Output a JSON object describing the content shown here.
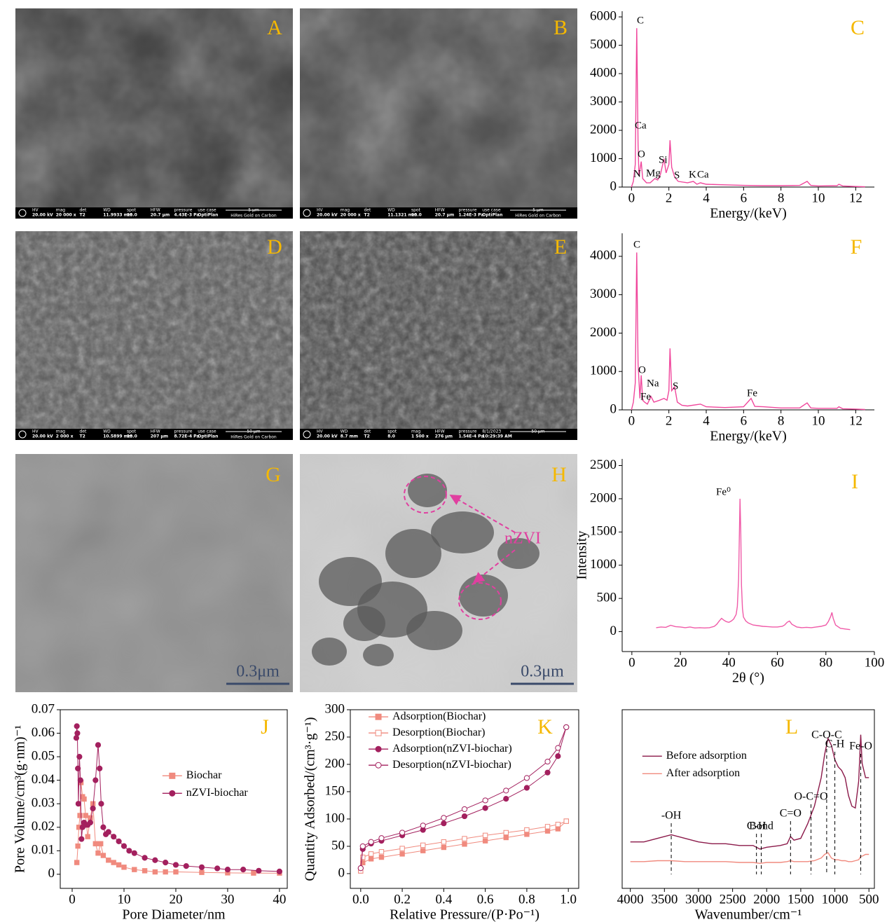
{
  "images": [
    {
      "label": "A",
      "infobar": {
        "fields": [
          {
            "label": "HV",
            "value": "20.00 kV"
          },
          {
            "label": "mag",
            "value": "20 000 x"
          },
          {
            "label": "det",
            "value": "T2"
          },
          {
            "label": "WD",
            "value": "11.9933 mm"
          },
          {
            "label": "spot",
            "value": "10.0"
          },
          {
            "label": "HFW",
            "value": "20.7 μm"
          },
          {
            "label": "pressure",
            "value": "4.43E-3 Pa"
          },
          {
            "label": "use case",
            "value": "OptiPlan"
          }
        ],
        "scale": "5 μm",
        "note": "HiRes Gold on Carbon"
      }
    },
    {
      "label": "B",
      "infobar": {
        "fields": [
          {
            "label": "HV",
            "value": "20.00 kV"
          },
          {
            "label": "mag",
            "value": "20 000 x"
          },
          {
            "label": "det",
            "value": "T2"
          },
          {
            "label": "WD",
            "value": "11.1321 mm"
          },
          {
            "label": "spot",
            "value": "10.0"
          },
          {
            "label": "HFW",
            "value": "20.7 μm"
          },
          {
            "label": "pressure",
            "value": "1.24E-3 Pa"
          },
          {
            "label": "use case",
            "value": "OptiPlan"
          }
        ],
        "scale": "5 μm",
        "note": "HiRes Gold on Carbon"
      }
    },
    {
      "label": "D",
      "infobar": {
        "fields": [
          {
            "label": "HV",
            "value": "20.00 kV"
          },
          {
            "label": "mag",
            "value": "2 000 x"
          },
          {
            "label": "det",
            "value": "T2"
          },
          {
            "label": "WD",
            "value": "10.5899 mm"
          },
          {
            "label": "spot",
            "value": "10.0"
          },
          {
            "label": "HFW",
            "value": "207 μm"
          },
          {
            "label": "pressure",
            "value": "8.72E-4 Pa"
          },
          {
            "label": "use case",
            "value": "OptiPlan"
          }
        ],
        "scale": "50 μm",
        "note": "HiRes Gold on Carbon"
      }
    },
    {
      "label": "E",
      "infobar": {
        "fields": [
          {
            "label": "HV",
            "value": "20.00 kV"
          },
          {
            "label": "WD",
            "value": "8.7 mm"
          },
          {
            "label": "det",
            "value": "T2"
          },
          {
            "label": "spot",
            "value": "8.0"
          },
          {
            "label": "mag",
            "value": "1 500 x"
          },
          {
            "label": "HFW",
            "value": "276 μm"
          },
          {
            "label": "pressure",
            "value": "1.54E-4 Pa"
          },
          {
            "label": "8/1/2023",
            "value": "10:29:39 AM"
          }
        ],
        "scale": "50 μm"
      }
    },
    {
      "label": "G",
      "scale": "0.3μm"
    },
    {
      "label": "H",
      "scale": "0.3μm",
      "annotation": "nZVI"
    }
  ],
  "chart_data": [
    {
      "type": "line",
      "panel": "C",
      "xlabel": "Energy/(keV)",
      "xlim": [
        -0.5,
        13
      ],
      "ylim": [
        0,
        6200
      ],
      "xticks": [
        0,
        2,
        4,
        6,
        8,
        10,
        12
      ],
      "yticks": [
        0,
        1000,
        2000,
        3000,
        4000,
        5000,
        6000
      ],
      "frame": false,
      "x": [
        0,
        0.1,
        0.2,
        0.28,
        0.35,
        0.4,
        0.52,
        0.6,
        0.8,
        1.0,
        1.25,
        1.4,
        1.55,
        1.74,
        1.85,
        2.0,
        2.06,
        2.15,
        2.31,
        2.5,
        3.0,
        3.31,
        3.5,
        3.69,
        4,
        5,
        6,
        7,
        8,
        9,
        9.4,
        9.6,
        10,
        11,
        11.1,
        11.3,
        12,
        12.5
      ],
      "series": [
        {
          "color": "#f0479c",
          "values": [
            0,
            200,
            800,
            5600,
            1500,
            400,
            900,
            300,
            150,
            150,
            300,
            250,
            450,
            1000,
            500,
            800,
            1650,
            700,
            350,
            200,
            150,
            200,
            100,
            150,
            100,
            80,
            60,
            50,
            50,
            60,
            200,
            60,
            40,
            50,
            100,
            40,
            20,
            10
          ]
        }
      ],
      "annotations": [
        "C",
        "Ca",
        "O",
        "N",
        "Mg",
        "Si",
        "S",
        "K",
        "Ca"
      ]
    },
    {
      "type": "line",
      "panel": "F",
      "xlabel": "Energy/(keV)",
      "xlim": [
        -0.5,
        13
      ],
      "ylim": [
        0,
        4600
      ],
      "xticks": [
        0,
        2,
        4,
        6,
        8,
        10,
        12
      ],
      "yticks": [
        0,
        1000,
        2000,
        3000,
        4000
      ],
      "frame": false,
      "x": [
        0,
        0.1,
        0.2,
        0.28,
        0.35,
        0.45,
        0.52,
        0.6,
        0.7,
        0.85,
        1.04,
        1.2,
        1.5,
        1.74,
        1.9,
        2.0,
        2.06,
        2.15,
        2.31,
        2.45,
        2.7,
        3.0,
        3.69,
        4,
        5,
        6,
        6.4,
        6.6,
        7.06,
        8,
        9,
        9.4,
        9.6,
        10,
        11,
        11.1,
        11.3,
        12,
        12.5
      ],
      "series": [
        {
          "color": "#f0479c",
          "values": [
            0,
            200,
            700,
            4100,
            1200,
            300,
            900,
            250,
            200,
            150,
            350,
            200,
            250,
            300,
            250,
            500,
            1600,
            500,
            600,
            200,
            120,
            100,
            150,
            80,
            60,
            80,
            300,
            90,
            80,
            50,
            50,
            180,
            50,
            40,
            40,
            80,
            30,
            20,
            10
          ]
        }
      ],
      "annotations": [
        "C",
        "O",
        "Na",
        "Fe",
        "S",
        "Fe"
      ]
    },
    {
      "type": "line",
      "panel": "I",
      "xlabel": "2θ (°)",
      "ylabel": "Intensity",
      "xlim": [
        -4,
        100
      ],
      "ylim": [
        -300,
        2600
      ],
      "xticks": [
        0,
        20,
        40,
        60,
        80,
        100
      ],
      "yticks": [
        0,
        500,
        1000,
        1500,
        2000,
        2500
      ],
      "frame": false,
      "x": [
        10,
        12,
        14,
        16,
        18,
        20,
        22,
        24,
        26,
        28,
        30,
        32,
        34,
        35,
        36,
        37,
        38,
        39,
        40,
        41,
        42,
        43,
        43.5,
        44,
        44.3,
        44.6,
        44.9,
        45.2,
        45.6,
        46,
        47,
        48,
        50,
        52,
        54,
        56,
        58,
        60,
        62,
        63,
        64,
        65,
        66,
        67,
        68,
        70,
        72,
        74,
        76,
        78,
        80,
        81,
        82,
        82.5,
        83,
        84,
        86,
        88,
        90
      ],
      "series": [
        {
          "color": "#f05ba8",
          "values": [
            60,
            70,
            65,
            95,
            75,
            70,
            60,
            70,
            55,
            60,
            55,
            60,
            80,
            110,
            160,
            200,
            170,
            150,
            140,
            160,
            190,
            260,
            380,
            800,
            1400,
            2000,
            1500,
            700,
            350,
            220,
            160,
            130,
            100,
            90,
            80,
            75,
            70,
            70,
            80,
            100,
            140,
            160,
            110,
            90,
            70,
            60,
            65,
            60,
            70,
            80,
            100,
            150,
            230,
            290,
            200,
            100,
            50,
            40,
            30
          ]
        }
      ],
      "annotations": [
        "Fe⁰"
      ]
    },
    {
      "type": "scatter",
      "panel": "J",
      "xlabel": "Pore Diameter/nm",
      "ylabel": "Pore Volume/cm³(g·nm)⁻¹",
      "xlim": [
        -2.3,
        41.5
      ],
      "ylim": [
        -0.006,
        0.07
      ],
      "xticks": [
        0,
        10,
        20,
        30,
        40
      ],
      "yticks": [
        0,
        0.01,
        0.02,
        0.03,
        0.04,
        0.05,
        0.06,
        0.07
      ],
      "frame": true,
      "legend": "center",
      "series": [
        {
          "name": "Biochar",
          "color": "#f08a7e",
          "marker": "square",
          "filled": true,
          "x": [
            0.9,
            1.1,
            1.3,
            1.5,
            1.7,
            2.0,
            2.3,
            2.6,
            3.0,
            3.5,
            4.0,
            4.5,
            5.0,
            5.5,
            6,
            7,
            8,
            9,
            10,
            12,
            14,
            16,
            18,
            20,
            25,
            30,
            35,
            40
          ],
          "values": [
            0.005,
            0.012,
            0.02,
            0.025,
            0.039,
            0.033,
            0.032,
            0.025,
            0.016,
            0.024,
            0.03,
            0.013,
            0.009,
            0.013,
            0.008,
            0.006,
            0.005,
            0.004,
            0.003,
            0.002,
            0.0015,
            0.001,
            0.001,
            0.001,
            0.0008,
            0.0006,
            0.0005,
            0.0005
          ]
        },
        {
          "name": "nZVI-biochar",
          "color": "#a3205e",
          "marker": "circle",
          "filled": true,
          "x": [
            0.8,
            0.9,
            1.0,
            1.1,
            1.2,
            1.4,
            1.6,
            1.8,
            2.0,
            2.3,
            2.6,
            3.0,
            3.5,
            4.0,
            4.5,
            5.0,
            5.3,
            5.6,
            6,
            6.5,
            7,
            8,
            9,
            10,
            11,
            12,
            14,
            16,
            18,
            20,
            22,
            25,
            28,
            30,
            33,
            36,
            40
          ],
          "values": [
            0.058,
            0.063,
            0.06,
            0.045,
            0.03,
            0.05,
            0.04,
            0.015,
            0.02,
            0.022,
            0.021,
            0.021,
            0.022,
            0.028,
            0.04,
            0.055,
            0.045,
            0.03,
            0.02,
            0.017,
            0.018,
            0.016,
            0.014,
            0.012,
            0.01,
            0.009,
            0.007,
            0.006,
            0.005,
            0.004,
            0.0035,
            0.003,
            0.0025,
            0.002,
            0.002,
            0.0015,
            0.0012
          ]
        }
      ]
    },
    {
      "type": "scatter",
      "panel": "K",
      "xlabel": "Relative Pressure/(P·Po⁻¹)",
      "ylabel": "Quantity Adsorbed/(cm³·g⁻¹)",
      "xlim": [
        -0.05,
        1.05
      ],
      "ylim": [
        -27,
        300
      ],
      "xticks": [
        {
          "value": 0,
          "label": "0.0"
        },
        0.2,
        0.4,
        0.6,
        0.8,
        {
          "value": 1,
          "label": "1.0"
        }
      ],
      "yticks": [
        0,
        50,
        100,
        150,
        200,
        250,
        300
      ],
      "frame": true,
      "legend": "upper left",
      "x": [
        0,
        0.01,
        0.05,
        0.1,
        0.2,
        0.3,
        0.4,
        0.5,
        0.6,
        0.7,
        0.8,
        0.9,
        0.95,
        0.99
      ],
      "series": [
        {
          "name": "Adsorption(Biochar)",
          "color": "#f08a7e",
          "marker": "square",
          "filled": true,
          "values": [
            5,
            20,
            27,
            30,
            36,
            42,
            48,
            54,
            60,
            66,
            72,
            78,
            82,
            96
          ]
        },
        {
          "name": "Desorption(Biochar)",
          "color": "#f08a7e",
          "marker": "square",
          "filled": false,
          "values": [
            5,
            30,
            36,
            40,
            46,
            52,
            58,
            64,
            70,
            75,
            80,
            86,
            90,
            96
          ]
        },
        {
          "name": "Adsorption(nZVI-biochar)",
          "color": "#a3205e",
          "marker": "circle",
          "filled": true,
          "values": [
            10,
            45,
            55,
            60,
            70,
            80,
            92,
            105,
            120,
            137,
            157,
            185,
            215,
            268
          ]
        },
        {
          "name": "Desorption(nZVI-biochar)",
          "color": "#a3205e",
          "marker": "circle",
          "filled": false,
          "values": [
            10,
            50,
            58,
            65,
            75,
            88,
            102,
            118,
            134,
            152,
            175,
            205,
            230,
            268
          ]
        }
      ]
    },
    {
      "type": "line",
      "panel": "L",
      "xlabel": "Wavenumber/cm⁻¹",
      "xlim": [
        4120,
        420
      ],
      "ylim": [
        0,
        100
      ],
      "xticks": [
        4000,
        3500,
        3000,
        2500,
        2000,
        1500,
        1000,
        500
      ],
      "frame": true,
      "legend": "center left",
      "x": [
        4000,
        3800,
        3600,
        3400,
        3200,
        3000,
        2800,
        2600,
        2400,
        2200,
        2100,
        2000,
        1800,
        1700,
        1650,
        1600,
        1500,
        1400,
        1300,
        1200,
        1150,
        1100,
        1050,
        1000,
        950,
        900,
        850,
        800,
        750,
        700,
        650,
        620,
        600,
        550,
        500
      ],
      "series": [
        {
          "name": "Before adsorption",
          "color": "#8b1a4a",
          "values": [
            26,
            26,
            28,
            30,
            28,
            26,
            25,
            25,
            24,
            24,
            22,
            23,
            24,
            25,
            29,
            27,
            28,
            36,
            46,
            62,
            75,
            84,
            80,
            72,
            68,
            66,
            62,
            52,
            46,
            45,
            60,
            86,
            70,
            62,
            62
          ]
        },
        {
          "name": "After adsorption",
          "color": "#f08a7e",
          "values": [
            15,
            15,
            15.5,
            15.5,
            15,
            15,
            15,
            15,
            14.5,
            14.5,
            14,
            14.5,
            14.5,
            15,
            15.5,
            15,
            15,
            15,
            15.5,
            17,
            19,
            20,
            17,
            16,
            16,
            15.5,
            15.5,
            15,
            15,
            15.5,
            16,
            18,
            18,
            19,
            19
          ]
        }
      ],
      "markers": [
        {
          "label": "-OH",
          "x": 3400
        },
        {
          "label": "C-H",
          "x": 2150
        },
        {
          "label": "Bond",
          "x": 2080
        },
        {
          "label": "C=O",
          "x": 1650
        },
        {
          "label": "O-C=O",
          "x": 1350
        },
        {
          "label": "C-O-C",
          "x": 1120
        },
        {
          "label": "C-H",
          "x": 1000
        },
        {
          "label": "Fe-O",
          "x": 620
        }
      ]
    }
  ]
}
